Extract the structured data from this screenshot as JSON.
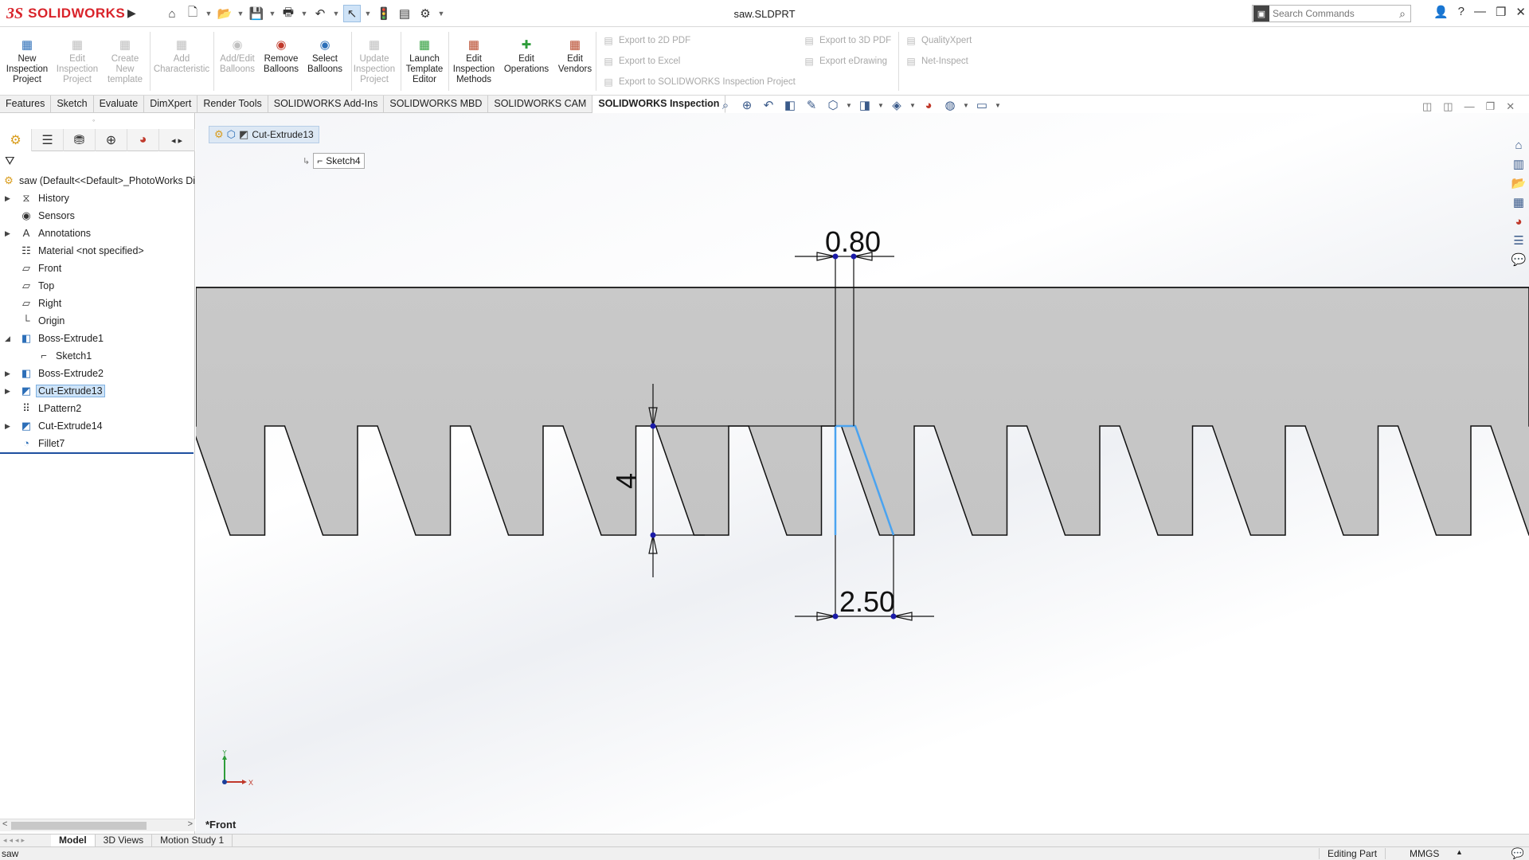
{
  "app": {
    "logo_ds": "3S",
    "logo_text": "SOLIDWORKS",
    "document_title": "saw.SLDPRT"
  },
  "search": {
    "placeholder": "Search Commands"
  },
  "ribbon": {
    "buttons": [
      {
        "label": "New Inspection Project",
        "line1": "New",
        "line2": "Inspection",
        "line3": "Project",
        "enabled": true
      },
      {
        "label": "Edit Inspection Project",
        "line1": "Edit",
        "line2": "Inspection",
        "line3": "Project",
        "enabled": false
      },
      {
        "label": "Create New template",
        "line1": "Create",
        "line2": "New",
        "line3": "template",
        "enabled": false
      },
      {
        "label": "Add Characteristic",
        "line1": "Add",
        "line2": "Characteristic",
        "line3": "",
        "enabled": false
      },
      {
        "label": "Add/Edit Balloons",
        "line1": "Add/Edit",
        "line2": "Balloons",
        "line3": "",
        "enabled": false
      },
      {
        "label": "Remove Balloons",
        "line1": "Remove",
        "line2": "Balloons",
        "line3": "",
        "enabled": true
      },
      {
        "label": "Select Balloons",
        "line1": "Select",
        "line2": "Balloons",
        "line3": "",
        "enabled": true
      },
      {
        "label": "Update Inspection Project",
        "line1": "Update",
        "line2": "Inspection",
        "line3": "Project",
        "enabled": false
      },
      {
        "label": "Launch Template Editor",
        "line1": "Launch",
        "line2": "Template",
        "line3": "Editor",
        "enabled": true
      },
      {
        "label": "Edit Inspection Methods",
        "line1": "Edit",
        "line2": "Inspection",
        "line3": "Methods",
        "enabled": true
      },
      {
        "label": "Edit Operations",
        "line1": "Edit",
        "line2": "Operations",
        "line3": "",
        "enabled": true
      },
      {
        "label": "Edit Vendors",
        "line1": "Edit",
        "line2": "Vendors",
        "line3": "",
        "enabled": true
      }
    ],
    "export_2d_pdf": "Export to 2D PDF",
    "export_excel": "Export to Excel",
    "export_sw_inspection": "Export to SOLIDWORKS Inspection Project",
    "export_3d_pdf": "Export to 3D PDF",
    "export_edrawing": "Export eDrawing",
    "qualityxpert": "QualityXpert",
    "net_inspect": "Net-Inspect"
  },
  "tabs": [
    "Features",
    "Sketch",
    "Evaluate",
    "DimXpert",
    "Render Tools",
    "SOLIDWORKS Add-Ins",
    "SOLIDWORKS MBD",
    "SOLIDWORKS CAM",
    "SOLIDWORKS Inspection"
  ],
  "active_tab": "SOLIDWORKS Inspection",
  "tree": {
    "root": "saw  (Default<<Default>_PhotoWorks Dis",
    "items": [
      {
        "label": "History",
        "expandable": true,
        "icon": "history-icon"
      },
      {
        "label": "Sensors",
        "expandable": false,
        "icon": "sensor-icon"
      },
      {
        "label": "Annotations",
        "expandable": true,
        "icon": "annotation-icon"
      },
      {
        "label": "Material <not specified>",
        "expandable": false,
        "icon": "material-icon"
      },
      {
        "label": "Front",
        "expandable": false,
        "icon": "plane-icon"
      },
      {
        "label": "Top",
        "expandable": false,
        "icon": "plane-icon"
      },
      {
        "label": "Right",
        "expandable": false,
        "icon": "plane-icon"
      },
      {
        "label": "Origin",
        "expandable": false,
        "icon": "origin-icon"
      },
      {
        "label": "Boss-Extrude1",
        "expandable": true,
        "expanded": true,
        "icon": "extrude-icon"
      },
      {
        "label": "Sketch1",
        "expandable": false,
        "icon": "sketch-icon",
        "child": true
      },
      {
        "label": "Boss-Extrude2",
        "expandable": true,
        "icon": "extrude-icon"
      },
      {
        "label": "Cut-Extrude13",
        "expandable": true,
        "icon": "cut-extrude-icon",
        "selected": true
      },
      {
        "label": "LPattern2",
        "expandable": false,
        "icon": "pattern-icon"
      },
      {
        "label": "Cut-Extrude14",
        "expandable": true,
        "icon": "cut-extrude-icon"
      },
      {
        "label": "Fillet7",
        "expandable": false,
        "icon": "fillet-icon"
      }
    ]
  },
  "viewport": {
    "breadcrumb_feature": "Cut-Extrude13",
    "breadcrumb_sketch": "Sketch4",
    "dim_top": "0.80",
    "dim_bottom": "2.50",
    "dim_left": "4",
    "view_label": "*Front",
    "axis_x": "X",
    "axis_y": "Y"
  },
  "bottom_tabs": [
    "Model",
    "3D Views",
    "Motion Study 1"
  ],
  "active_bottom_tab": "Model",
  "status": {
    "left": "saw",
    "mode": "Editing Part",
    "units": "MMGS"
  }
}
